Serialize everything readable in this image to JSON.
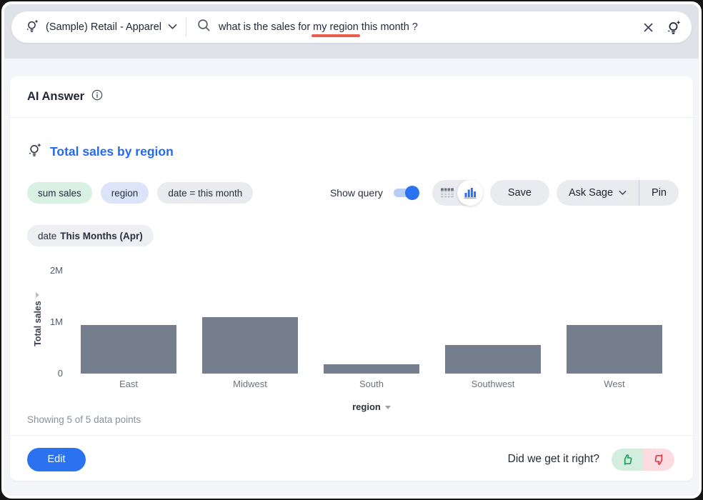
{
  "topbar": {
    "source_label": "(Sample) Retail - Apparel",
    "query": {
      "prefix": "what is the sales for ",
      "highlight": "my region",
      "suffix": " this month ?"
    }
  },
  "panel": {
    "title": "AI Answer",
    "answer_title": "Total sales by region",
    "tokens": [
      {
        "label": "sum sales",
        "type": "measure"
      },
      {
        "label": "region",
        "type": "attribute"
      },
      {
        "label": "date = this month",
        "type": "filter"
      }
    ],
    "show_query_label": "Show query",
    "show_query_on": true,
    "active_view": "chart",
    "save_label": "Save",
    "ask_sage_label": "Ask Sage",
    "pin_label": "Pin",
    "filter_date_name": "date",
    "filter_date_value": "This Months (Apr)",
    "status": "Showing 5 of 5 data points",
    "edit_label": "Edit",
    "feedback_question": "Did we get it right?"
  },
  "chart_data": {
    "type": "bar",
    "title": "Total sales by region",
    "categories": [
      "East",
      "Midwest",
      "South",
      "Southwest",
      "West"
    ],
    "series": [
      {
        "name": "Total sales",
        "values": [
          950000,
          1100000,
          180000,
          550000,
          950000
        ]
      }
    ],
    "xlabel": "region",
    "ylabel": "Total sales",
    "ylim": [
      0,
      2000000
    ],
    "yticks": [
      {
        "label": "0",
        "value": 0
      },
      {
        "label": "1M",
        "value": 1000000
      },
      {
        "label": "2M",
        "value": 2000000
      }
    ],
    "grid": false,
    "legend": false,
    "bar_color": "#747e8c",
    "footnote": "Showing 5 of 5 data points"
  },
  "colors": {
    "accent_blue": "#2b72f0",
    "title_blue": "#2569f0",
    "query_underline_red": "#ea5b4c",
    "bar_gray": "#747e8c",
    "thumb_up_green": "#1ea15c",
    "thumb_down_red": "#e0394b",
    "topbar_gray": "#dfe2e9",
    "page_bg": "#f4f5f8"
  }
}
